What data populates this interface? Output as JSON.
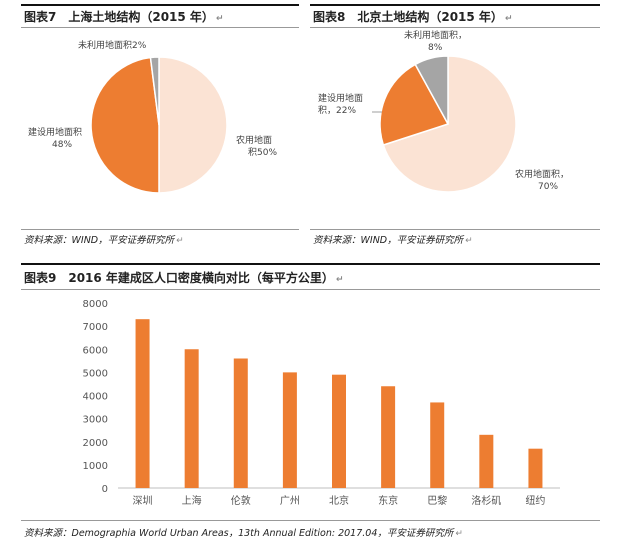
{
  "fig7": {
    "title": "图表7　上海土地结构（2015 年）",
    "source": "资料来源：WIND，平安证券研究所"
  },
  "fig8": {
    "title": "图表8　北京土地结构（2015 年）",
    "source": "资料来源：WIND，平安证券研究所"
  },
  "fig9": {
    "title": "图表9　2016 年建成区人口密度横向对比（每平方公里）",
    "source": "资料来源：Demographia World Urban Areas，13th Annual Edition: 2017.04，平安证券研究所"
  },
  "edit_mark": "↵",
  "colors": {
    "agri": "#FBE3D4",
    "build": "#ED7D31",
    "unused": "#A5A5A5",
    "bar": "#ED7D31"
  },
  "chart_data": [
    {
      "type": "pie",
      "title": "",
      "slices": [
        {
          "label_top": "农用地面",
          "label_bottom": "积50%",
          "value": 50,
          "color": "#FBE3D4"
        },
        {
          "label_top": "建设用地面积",
          "label_bottom": "48%",
          "value": 48,
          "color": "#ED7D31"
        },
        {
          "label_top": "未利用地面积2%",
          "label_bottom": "",
          "value": 2,
          "color": "#A5A5A5"
        }
      ]
    },
    {
      "type": "pie",
      "title": "",
      "slices": [
        {
          "label_top": "农用地面积，",
          "label_bottom": "70%",
          "value": 70,
          "color": "#FBE3D4"
        },
        {
          "label_top": "建设用地面",
          "label_bottom": "积，22%",
          "value": 22,
          "color": "#ED7D31"
        },
        {
          "label_top": "未利用地面积，",
          "label_bottom": "8%",
          "value": 8,
          "color": "#A5A5A5"
        }
      ]
    },
    {
      "type": "bar",
      "title": "",
      "xlabel": "",
      "ylabel": "",
      "categories": [
        "深圳",
        "上海",
        "伦敦",
        "广州",
        "北京",
        "东京",
        "巴黎",
        "洛杉矶",
        "纽约"
      ],
      "values": [
        7300,
        6000,
        5600,
        5000,
        4900,
        4400,
        3700,
        2300,
        1700
      ],
      "ylim": [
        0,
        8000
      ],
      "yticks": [
        "0",
        "1000",
        "2000",
        "3000",
        "4000",
        "5000",
        "6000",
        "7000",
        "8000"
      ],
      "grid": false,
      "color": "#ED7D31"
    }
  ]
}
